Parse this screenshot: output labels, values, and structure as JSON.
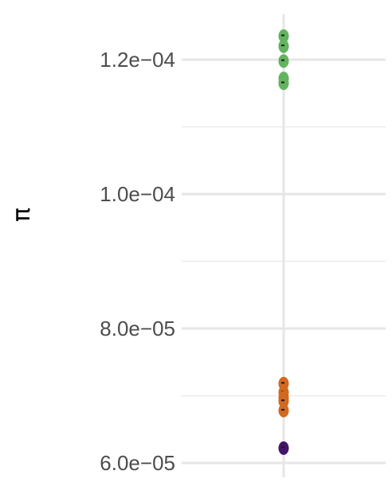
{
  "chart_data": {
    "type": "scatter",
    "title": "",
    "xlabel": "",
    "ylabel": "π",
    "grid": true,
    "legend": "none",
    "ylim": [
      5.95e-05,
      0.0001265
    ],
    "y_major_ticks": [
      6e-05,
      8e-05,
      0.0001,
      0.00012
    ],
    "y_minor_ticks": [
      7e-05,
      9e-05,
      0.00011
    ],
    "y_tick_labels": [
      "6.0e−05",
      "8.0e−05",
      "1.0e−04",
      "1.2e−04"
    ],
    "series": [
      {
        "color": "#63b35f",
        "x": [
          0,
          0,
          0,
          0,
          0
        ],
        "y": [
          0.0001235,
          0.000122,
          0.0001198,
          0.0001172,
          0.0001165
        ]
      },
      {
        "color": "#d2691e",
        "x": [
          0,
          0,
          0,
          0,
          0
        ],
        "y": [
          7.18e-05,
          7.05e-05,
          6.97e-05,
          6.92e-05,
          6.78e-05
        ]
      },
      {
        "color": "#43156a",
        "x": [
          0
        ],
        "y": [
          6.22e-05
        ]
      }
    ]
  }
}
